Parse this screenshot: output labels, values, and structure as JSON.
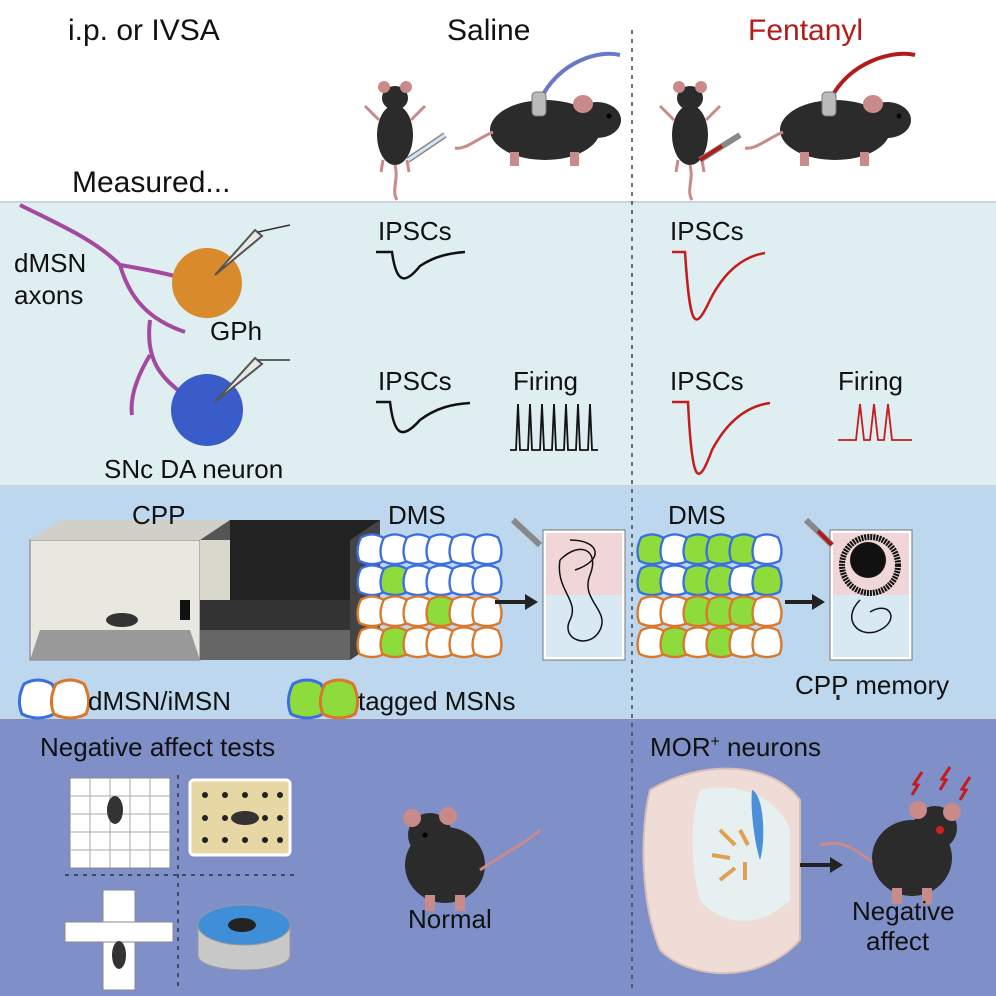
{
  "header": {
    "route": "i.p. or IVSA",
    "saline": "Saline",
    "fentanyl": "Fentanyl",
    "measured": "Measured..."
  },
  "electrophysiology": {
    "axons_line1": "dMSN",
    "axons_line2": "axons",
    "gph": "GPh",
    "snc": "SNc DA neuron",
    "ipscs": "IPSCs",
    "firing": "Firing"
  },
  "cpp": {
    "cpp": "CPP",
    "dms": "DMS",
    "legend_msn": "dMSN/iMSN",
    "legend_tagged": "tagged MSNs",
    "cpp_memory": "CPP memory"
  },
  "affect": {
    "negative_tests": "Negative affect tests",
    "normal": "Normal",
    "mor_prefix": "MOR",
    "mor_sup": "+",
    "mor_suffix": " neurons",
    "negative_line1": "Negative",
    "negative_line2": "affect"
  },
  "colors": {
    "fentanyl_red": "#b31b1b",
    "band_ephys": "#dfeff1",
    "band_cpp": "#bcd7ee",
    "band_affect": "#7f8fc8",
    "gph_orange": "#d98a2b",
    "snc_blue": "#3a5cc8",
    "axon_purple": "#a34aa0",
    "tagged_green": "#8edc3c",
    "dmsn_blue": "#3b6fe0",
    "imsn_orange": "#d9772a"
  }
}
